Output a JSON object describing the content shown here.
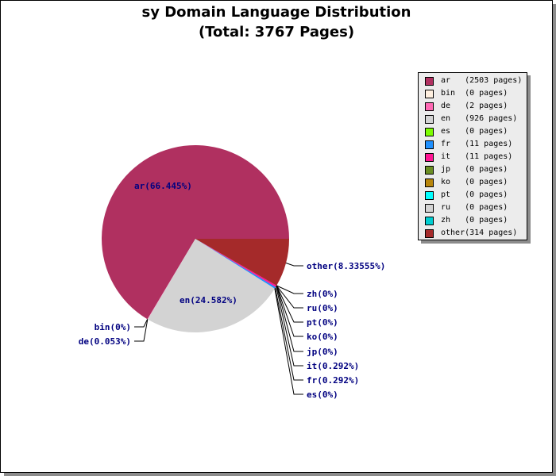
{
  "chart_data": {
    "type": "pie",
    "title": "sy Domain Language Distribution",
    "subtitle": "(Total: 3767 Pages)",
    "legend_position": "right",
    "slices": [
      {
        "key": "ar",
        "pages": 2503,
        "legend": "ar   (2503 pages)",
        "label": "ar(66.445%)",
        "color": "#b03060"
      },
      {
        "key": "bin",
        "pages": 0,
        "legend": "bin  (0 pages)",
        "label": "bin(0%)",
        "color": "#fff0e0"
      },
      {
        "key": "de",
        "pages": 2,
        "legend": "de   (2 pages)",
        "label": "de(0.053%)",
        "color": "#ff69b4"
      },
      {
        "key": "en",
        "pages": 926,
        "legend": "en   (926 pages)",
        "label": "en(24.582%)",
        "color": "#d3d3d3"
      },
      {
        "key": "es",
        "pages": 0,
        "legend": "es   (0 pages)",
        "label": "es(0%)",
        "color": "#7cfc00"
      },
      {
        "key": "fr",
        "pages": 11,
        "legend": "fr   (11 pages)",
        "label": "fr(0.292%)",
        "color": "#1e90ff"
      },
      {
        "key": "it",
        "pages": 11,
        "legend": "it   (11 pages)",
        "label": "it(0.292%)",
        "color": "#ff1493"
      },
      {
        "key": "jp",
        "pages": 0,
        "legend": "jp   (0 pages)",
        "label": "jp(0%)",
        "color": "#6b8e23"
      },
      {
        "key": "ko",
        "pages": 0,
        "legend": "ko   (0 pages)",
        "label": "ko(0%)",
        "color": "#b8860b"
      },
      {
        "key": "pt",
        "pages": 0,
        "legend": "pt   (0 pages)",
        "label": "pt(0%)",
        "color": "#00ffff"
      },
      {
        "key": "ru",
        "pages": 0,
        "legend": "ru   (0 pages)",
        "label": "ru(0%)",
        "color": "#d3d3d3"
      },
      {
        "key": "zh",
        "pages": 0,
        "legend": "zh   (0 pages)",
        "label": "zh(0%)",
        "color": "#00ced1"
      },
      {
        "key": "other",
        "pages": 314,
        "legend": "other(314 pages)",
        "label": "other(8.33555%)",
        "color": "#a52a2a"
      }
    ]
  }
}
